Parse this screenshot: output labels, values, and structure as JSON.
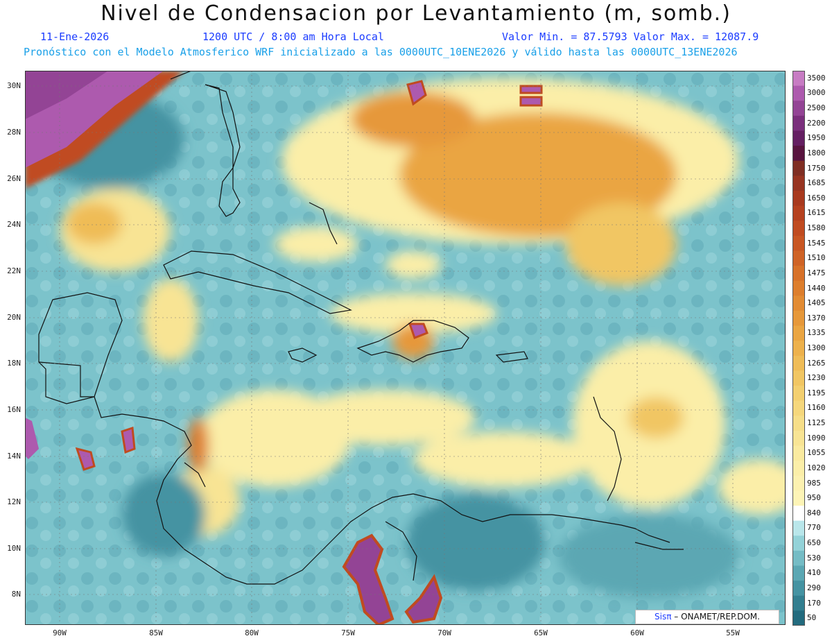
{
  "header": {
    "title": "Nivel de Condensacion por Levantamiento (m, somb.)",
    "date": "11-Ene-2026",
    "time": "1200 UTC / 8:00 am Hora Local",
    "minmax": "Valor Min. = 87.5793  Valor Max. = 12087.9",
    "description": "Pronóstico con el Modelo Atmosferico WRF inicializado a las 0000UTC_10ENE2026 y válido hasta las  0000UTC_13ENE2026"
  },
  "axes": {
    "lat_labels": [
      "30N",
      "28N",
      "26N",
      "24N",
      "22N",
      "20N",
      "18N",
      "16N",
      "14N",
      "12N",
      "10N",
      "8N"
    ],
    "lon_labels": [
      "90W",
      "85W",
      "80W",
      "75W",
      "70W",
      "65W",
      "60W",
      "55W"
    ]
  },
  "colorbar": {
    "labels": [
      "3500",
      "3000",
      "2500",
      "2200",
      "1950",
      "1800",
      "1750",
      "1685",
      "1650",
      "1615",
      "1580",
      "1545",
      "1510",
      "1475",
      "1440",
      "1405",
      "1370",
      "1335",
      "1300",
      "1265",
      "1230",
      "1195",
      "1160",
      "1125",
      "1090",
      "1055",
      "1020",
      "985",
      "950",
      "840",
      "770",
      "650",
      "530",
      "410",
      "290",
      "170",
      "50"
    ],
    "colors": [
      "#c77cc3",
      "#ad5aae",
      "#934495",
      "#7a2f7c",
      "#641f62",
      "#58143f",
      "#7f2e23",
      "#973421",
      "#a8391e",
      "#b5411f",
      "#c04b20",
      "#c85623",
      "#cf6326",
      "#d77129",
      "#dd7e2d",
      "#e28b33",
      "#e6983a",
      "#eaa542",
      "#edb14c",
      "#efbc57",
      "#f1c663",
      "#f3cf6f",
      "#f5d77c",
      "#f6de88",
      "#f8e494",
      "#faea9f",
      "#fbeea8",
      "#fcf1b0",
      "#fdf4b6",
      "#ffffff",
      "#b9e6ea",
      "#93d2d8",
      "#75bcc5",
      "#5ba7b3",
      "#4593a2",
      "#337f90",
      "#236b7e"
    ]
  },
  "credit": {
    "logo": "Sisπ",
    "text": " – ONAMET/REP.DOM."
  }
}
